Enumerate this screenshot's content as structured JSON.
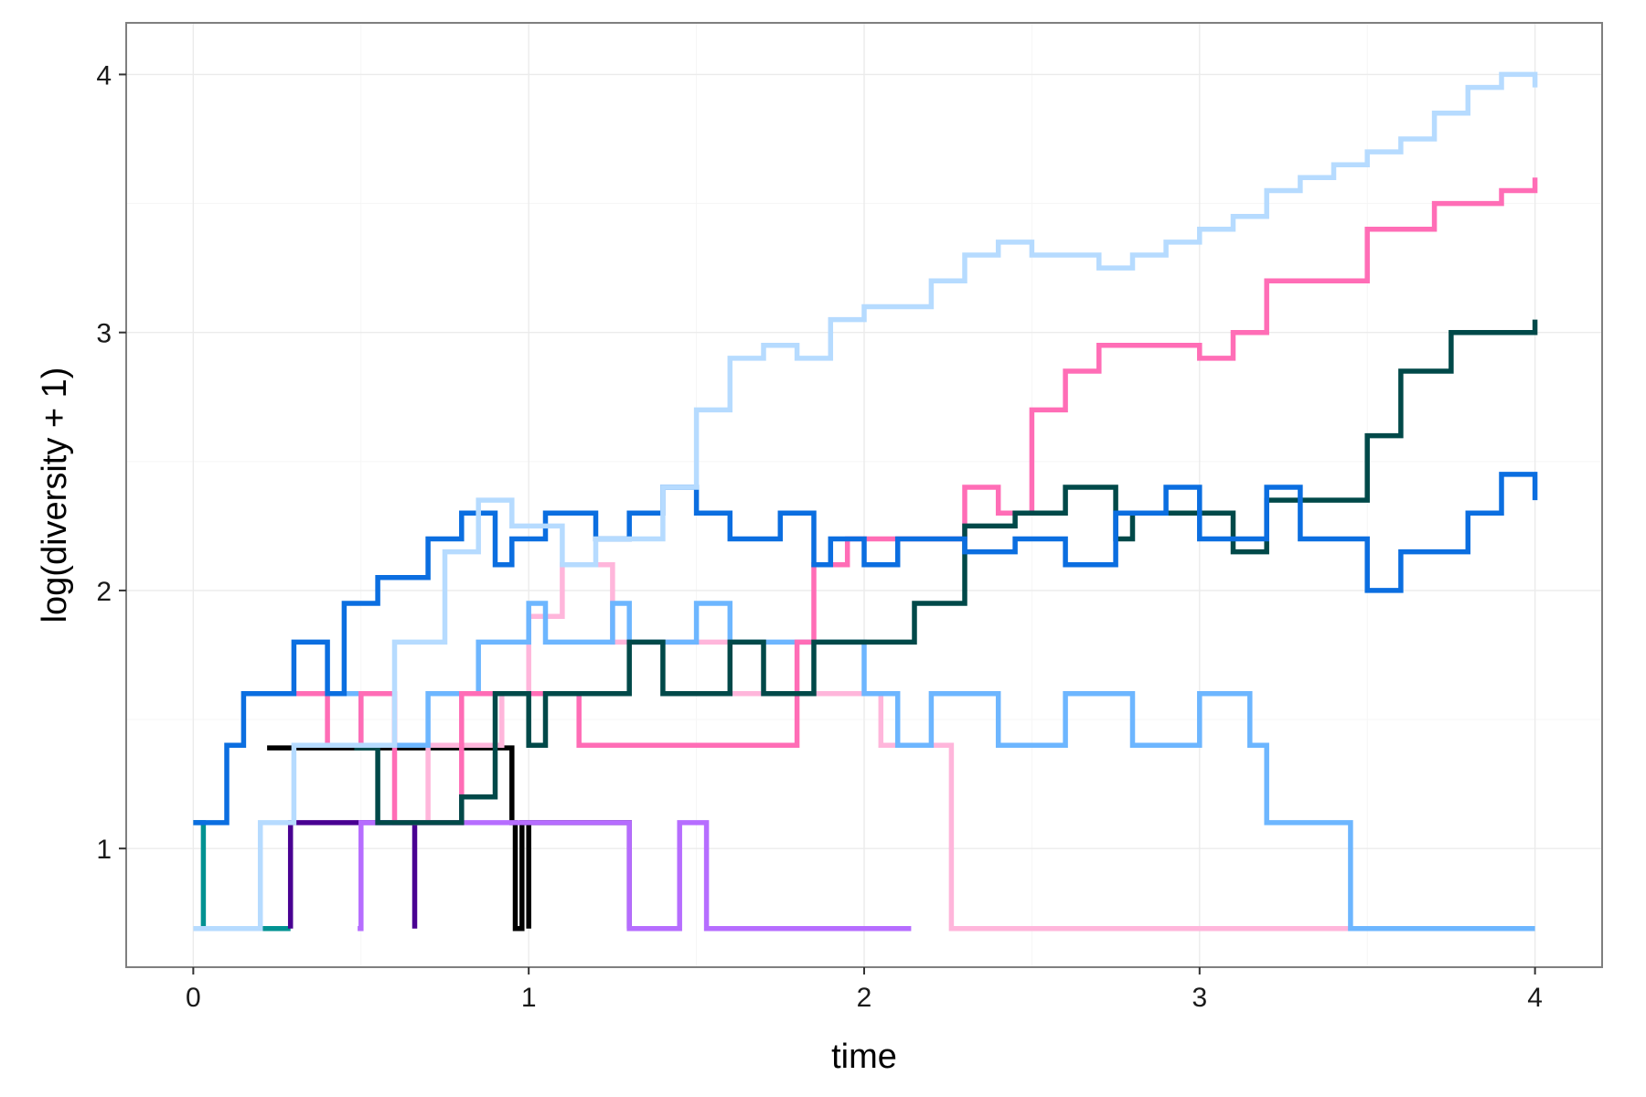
{
  "chart_data": {
    "type": "line",
    "step": true,
    "xlabel": "time",
    "ylabel": "log(diversity + 1)",
    "xlim": [
      -0.2,
      4.2
    ],
    "ylim": [
      0.54,
      4.2
    ],
    "xticks": [
      0,
      1,
      2,
      3,
      4
    ],
    "yticks": [
      1,
      2,
      3,
      4
    ],
    "xtick_labels": [
      "0",
      "1",
      "2",
      "3",
      "4"
    ],
    "ytick_labels": [
      "1",
      "2",
      "3",
      "4"
    ],
    "grid": true,
    "legend": "none",
    "series": [
      {
        "color": "#009292",
        "x": [
          0,
          0.03,
          0.03,
          0.29
        ],
        "y": [
          1.1,
          1.1,
          0.69,
          0.69
        ]
      },
      {
        "color": "#490092",
        "x": [
          0.29,
          0.29,
          0.66
        ],
        "y": [
          0.69,
          1.1,
          0.69
        ]
      },
      {
        "color": "#000000",
        "x": [
          0.22,
          0.95,
          0.96,
          0.98,
          1.0,
          1.0,
          1.3
        ],
        "y": [
          1.39,
          1.1,
          0.69,
          1.1,
          0.69,
          1.1,
          0.69
        ]
      },
      {
        "color": "#b66dff",
        "x": [
          0.49,
          0.5,
          1.3,
          1.3,
          1.45,
          1.53,
          2.14
        ],
        "y": [
          0.69,
          1.1,
          1.1,
          0.69,
          1.1,
          0.69,
          0.69
        ]
      },
      {
        "color": "#ffb6db",
        "x": [
          0.67,
          0.7,
          0.92,
          1.0,
          1.1,
          1.25,
          1.42,
          1.6,
          1.8,
          1.85,
          2.05,
          2.25,
          2.26,
          3.0,
          3.45
        ],
        "y": [
          1.1,
          1.4,
          1.6,
          1.9,
          2.1,
          1.8,
          1.8,
          1.6,
          1.6,
          1.6,
          1.4,
          1.4,
          0.69,
          0.69,
          0.69
        ]
      },
      {
        "color": "#6db6ff",
        "x": [
          0.4,
          0.5,
          0.7,
          0.85,
          1.0,
          1.05,
          1.25,
          1.3,
          1.5,
          1.6,
          1.8,
          2.0,
          2.1,
          2.2,
          2.35,
          2.4,
          2.6,
          2.8,
          3.0,
          3.15,
          3.2,
          3.45,
          4.0
        ],
        "y": [
          1.6,
          1.4,
          1.6,
          1.8,
          1.95,
          1.8,
          1.95,
          1.8,
          1.95,
          1.8,
          1.8,
          1.6,
          1.4,
          1.6,
          1.6,
          1.4,
          1.6,
          1.4,
          1.6,
          1.4,
          1.1,
          0.69,
          0.69
        ]
      },
      {
        "color": "#ff6db6",
        "x": [
          0.22,
          0.4,
          0.5,
          0.6,
          0.8,
          1.0,
          1.15,
          1.3,
          1.5,
          1.8,
          1.85,
          1.95,
          2.15,
          2.3,
          2.4,
          2.5,
          2.6,
          2.7,
          2.9,
          3.0,
          3.1,
          3.2,
          3.3,
          3.5,
          3.7,
          3.9,
          4.0
        ],
        "y": [
          1.6,
          1.4,
          1.6,
          1.1,
          1.6,
          1.6,
          1.4,
          1.4,
          1.4,
          1.8,
          2.1,
          2.2,
          2.2,
          2.4,
          2.3,
          2.7,
          2.85,
          2.95,
          2.95,
          2.9,
          3.0,
          3.2,
          3.2,
          3.4,
          3.5,
          3.55,
          3.6
        ]
      },
      {
        "color": "#004949",
        "x": [
          0.48,
          0.55,
          0.8,
          0.9,
          1.0,
          1.05,
          1.3,
          1.4,
          1.6,
          1.7,
          1.85,
          2.0,
          2.15,
          2.3,
          2.45,
          2.6,
          2.75,
          2.8,
          3.0,
          3.1,
          3.2,
          3.35,
          3.5,
          3.6,
          3.75,
          3.85,
          4.0
        ],
        "y": [
          1.39,
          1.1,
          1.2,
          1.6,
          1.4,
          1.6,
          1.8,
          1.6,
          1.8,
          1.6,
          1.8,
          1.8,
          1.95,
          2.25,
          2.3,
          2.4,
          2.2,
          2.3,
          2.3,
          2.15,
          2.35,
          2.35,
          2.6,
          2.85,
          3.0,
          3.0,
          3.05
        ]
      },
      {
        "color": "#0b6ee0",
        "x": [
          0,
          0.1,
          0.15,
          0.3,
          0.4,
          0.45,
          0.55,
          0.7,
          0.8,
          0.9,
          0.95,
          1.05,
          1.2,
          1.3,
          1.4,
          1.5,
          1.6,
          1.75,
          1.85,
          1.9,
          2.0,
          2.1,
          2.3,
          2.45,
          2.6,
          2.75,
          2.9,
          3.0,
          3.2,
          3.3,
          3.5,
          3.6,
          3.8,
          3.9,
          4.0
        ],
        "y": [
          1.1,
          1.4,
          1.6,
          1.8,
          1.6,
          1.95,
          2.05,
          2.2,
          2.3,
          2.1,
          2.2,
          2.3,
          2.2,
          2.3,
          2.4,
          2.3,
          2.2,
          2.3,
          2.1,
          2.2,
          2.1,
          2.2,
          2.15,
          2.2,
          2.1,
          2.3,
          2.4,
          2.2,
          2.4,
          2.2,
          2.0,
          2.15,
          2.3,
          2.45,
          2.35
        ]
      },
      {
        "color": "#b6dbff",
        "x": [
          0,
          0.2,
          0.3,
          0.6,
          0.75,
          0.85,
          0.95,
          1.1,
          1.2,
          1.3,
          1.4,
          1.5,
          1.6,
          1.7,
          1.8,
          1.9,
          2.0,
          2.1,
          2.2,
          2.3,
          2.4,
          2.5,
          2.6,
          2.7,
          2.8,
          2.9,
          3.0,
          3.1,
          3.2,
          3.3,
          3.4,
          3.5,
          3.6,
          3.7,
          3.8,
          3.9,
          4.0
        ],
        "y": [
          0.69,
          1.1,
          1.4,
          1.8,
          2.15,
          2.35,
          2.25,
          2.1,
          2.2,
          2.2,
          2.4,
          2.7,
          2.9,
          2.95,
          2.9,
          3.05,
          3.1,
          3.1,
          3.2,
          3.3,
          3.35,
          3.3,
          3.3,
          3.25,
          3.3,
          3.35,
          3.4,
          3.45,
          3.55,
          3.6,
          3.65,
          3.7,
          3.75,
          3.85,
          3.95,
          4.0,
          3.95
        ]
      }
    ]
  }
}
